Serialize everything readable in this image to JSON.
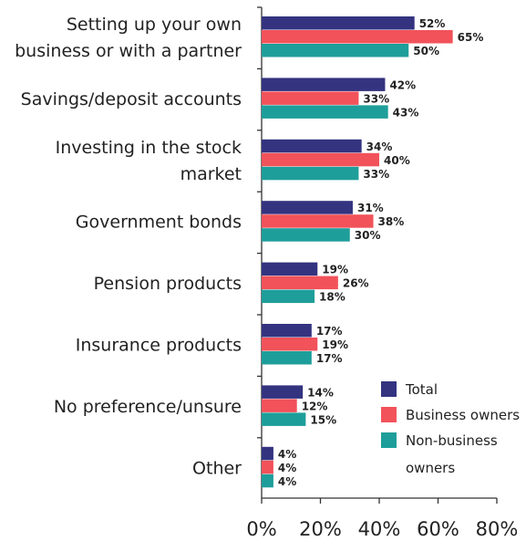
{
  "chart_data": {
    "type": "bar",
    "orientation": "horizontal",
    "categories": [
      [
        "Setting up your own",
        "business or with a partner"
      ],
      [
        "Savings/deposit accounts"
      ],
      [
        "Investing in the stock",
        "market"
      ],
      [
        "Government bonds"
      ],
      [
        "Pension products"
      ],
      [
        "Insurance products"
      ],
      [
        "No preference/unsure"
      ],
      [
        "Other"
      ]
    ],
    "series": [
      {
        "name": "Total",
        "color": "#333380",
        "values": [
          52,
          42,
          34,
          31,
          19,
          17,
          14,
          4
        ]
      },
      {
        "name": "Business owners",
        "color": "#f2525a",
        "values": [
          65,
          33,
          40,
          38,
          26,
          19,
          12,
          4
        ]
      },
      {
        "name": "Non-business owners",
        "color": "#1e9e9a",
        "values": [
          50,
          43,
          33,
          30,
          18,
          17,
          15,
          4
        ]
      }
    ],
    "legend_lines": [
      [
        "Total"
      ],
      [
        "Business owners"
      ],
      [
        "Non-business",
        "owners"
      ]
    ],
    "xlim": [
      0,
      80
    ],
    "xticks": [
      0,
      20,
      40,
      60,
      80
    ],
    "xtick_labels": [
      "0%",
      "20%",
      "40%",
      "60%",
      "80%"
    ],
    "value_suffix": "%",
    "title": "",
    "xlabel": "",
    "ylabel": "",
    "grid": false,
    "legend_position": "bottom-right"
  }
}
